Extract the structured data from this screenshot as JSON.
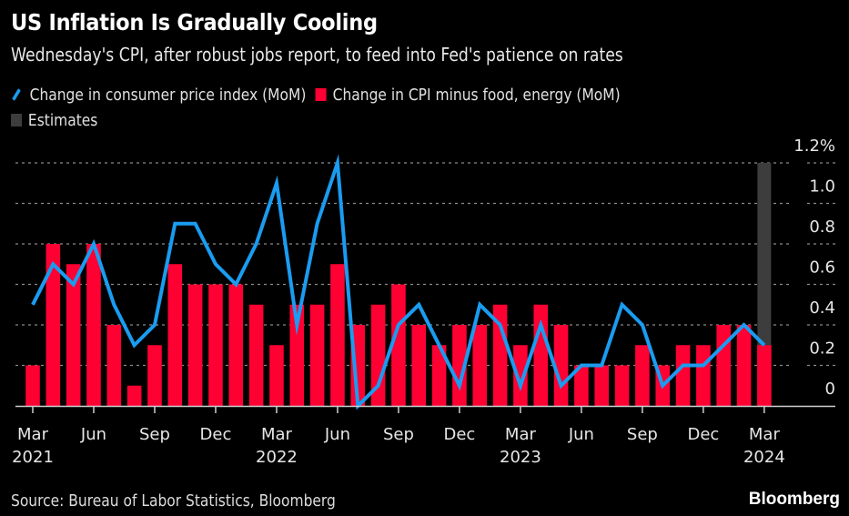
{
  "header": {
    "title": "US Inflation Is Gradually Cooling",
    "subtitle": "Wednesday's CPI, after robust jobs report, to feed into Fed's patience on rates"
  },
  "legend": {
    "items": [
      {
        "label": "Change in consumer price index (MoM)",
        "icon": "line-swatch-icon",
        "color": "#1a9cf0"
      },
      {
        "label": "Change in CPI minus food, energy (MoM)",
        "icon": "box-swatch-icon",
        "color": "#ff0033"
      },
      {
        "label": "Estimates",
        "icon": "box-swatch-icon",
        "color": "#3d3d3d"
      }
    ]
  },
  "footer": {
    "source": "Source: Bureau of Labor Statistics, Bloomberg",
    "brand": "Bloomberg"
  },
  "chart_data": {
    "type": "bar+line",
    "title": "US Inflation Is Gradually Cooling",
    "subtitle": "Wednesday's CPI, after robust jobs report, to feed into Fed's patience on rates",
    "xlabel": "",
    "ylabel": "%",
    "ylim": [
      0,
      1.2
    ],
    "yticks": [
      0,
      0.2,
      0.4,
      0.6,
      0.8,
      1.0,
      1.2
    ],
    "ytick_labels": [
      "0",
      "0.2",
      "0.4",
      "0.6",
      "0.8",
      "1.0",
      "1.2%"
    ],
    "y_axis_side": "right",
    "grid": true,
    "legend_position": "top-left",
    "x": [
      "2021-03",
      "2021-04",
      "2021-05",
      "2021-06",
      "2021-07",
      "2021-08",
      "2021-09",
      "2021-10",
      "2021-11",
      "2021-12",
      "2022-01",
      "2022-02",
      "2022-03",
      "2022-04",
      "2022-05",
      "2022-06",
      "2022-07",
      "2022-08",
      "2022-09",
      "2022-10",
      "2022-11",
      "2022-12",
      "2023-01",
      "2023-02",
      "2023-03",
      "2023-04",
      "2023-05",
      "2023-06",
      "2023-07",
      "2023-08",
      "2023-09",
      "2023-10",
      "2023-11",
      "2023-12",
      "2024-01",
      "2024-02",
      "2024-03"
    ],
    "xticks": [
      {
        "index": 0,
        "label": "Mar",
        "year": "2021"
      },
      {
        "index": 3,
        "label": "Jun",
        "year": ""
      },
      {
        "index": 6,
        "label": "Sep",
        "year": ""
      },
      {
        "index": 9,
        "label": "Dec",
        "year": ""
      },
      {
        "index": 12,
        "label": "Mar",
        "year": "2022"
      },
      {
        "index": 15,
        "label": "Jun",
        "year": ""
      },
      {
        "index": 18,
        "label": "Sep",
        "year": ""
      },
      {
        "index": 21,
        "label": "Dec",
        "year": ""
      },
      {
        "index": 24,
        "label": "Mar",
        "year": "2023"
      },
      {
        "index": 27,
        "label": "Jun",
        "year": ""
      },
      {
        "index": 30,
        "label": "Sep",
        "year": ""
      },
      {
        "index": 33,
        "label": "Dec",
        "year": ""
      },
      {
        "index": 36,
        "label": "Mar",
        "year": "2024"
      }
    ],
    "series": [
      {
        "name": "Change in consumer price index (MoM)",
        "type": "line",
        "color": "#1a9cf0",
        "values": [
          0.5,
          0.7,
          0.6,
          0.8,
          0.5,
          0.3,
          0.4,
          0.9,
          0.9,
          0.7,
          0.6,
          0.8,
          1.1,
          0.4,
          0.9,
          1.2,
          0.0,
          0.1,
          0.4,
          0.5,
          0.3,
          0.1,
          0.5,
          0.4,
          0.1,
          0.4,
          0.1,
          0.2,
          0.2,
          0.5,
          0.4,
          0.1,
          0.2,
          0.2,
          0.3,
          0.4,
          0.3
        ]
      },
      {
        "name": "Change in CPI minus food, energy (MoM)",
        "type": "bar",
        "color": "#ff0033",
        "values": [
          0.2,
          0.8,
          0.7,
          0.8,
          0.4,
          0.1,
          0.3,
          0.7,
          0.6,
          0.6,
          0.6,
          0.5,
          0.3,
          0.5,
          0.5,
          0.7,
          0.4,
          0.5,
          0.6,
          0.4,
          0.3,
          0.4,
          0.4,
          0.5,
          0.3,
          0.5,
          0.4,
          0.2,
          0.2,
          0.2,
          0.3,
          0.2,
          0.3,
          0.3,
          0.4,
          0.4,
          0.3
        ]
      }
    ],
    "estimates": {
      "name": "Estimates",
      "color": "#3d3d3d",
      "index": 36
    }
  }
}
